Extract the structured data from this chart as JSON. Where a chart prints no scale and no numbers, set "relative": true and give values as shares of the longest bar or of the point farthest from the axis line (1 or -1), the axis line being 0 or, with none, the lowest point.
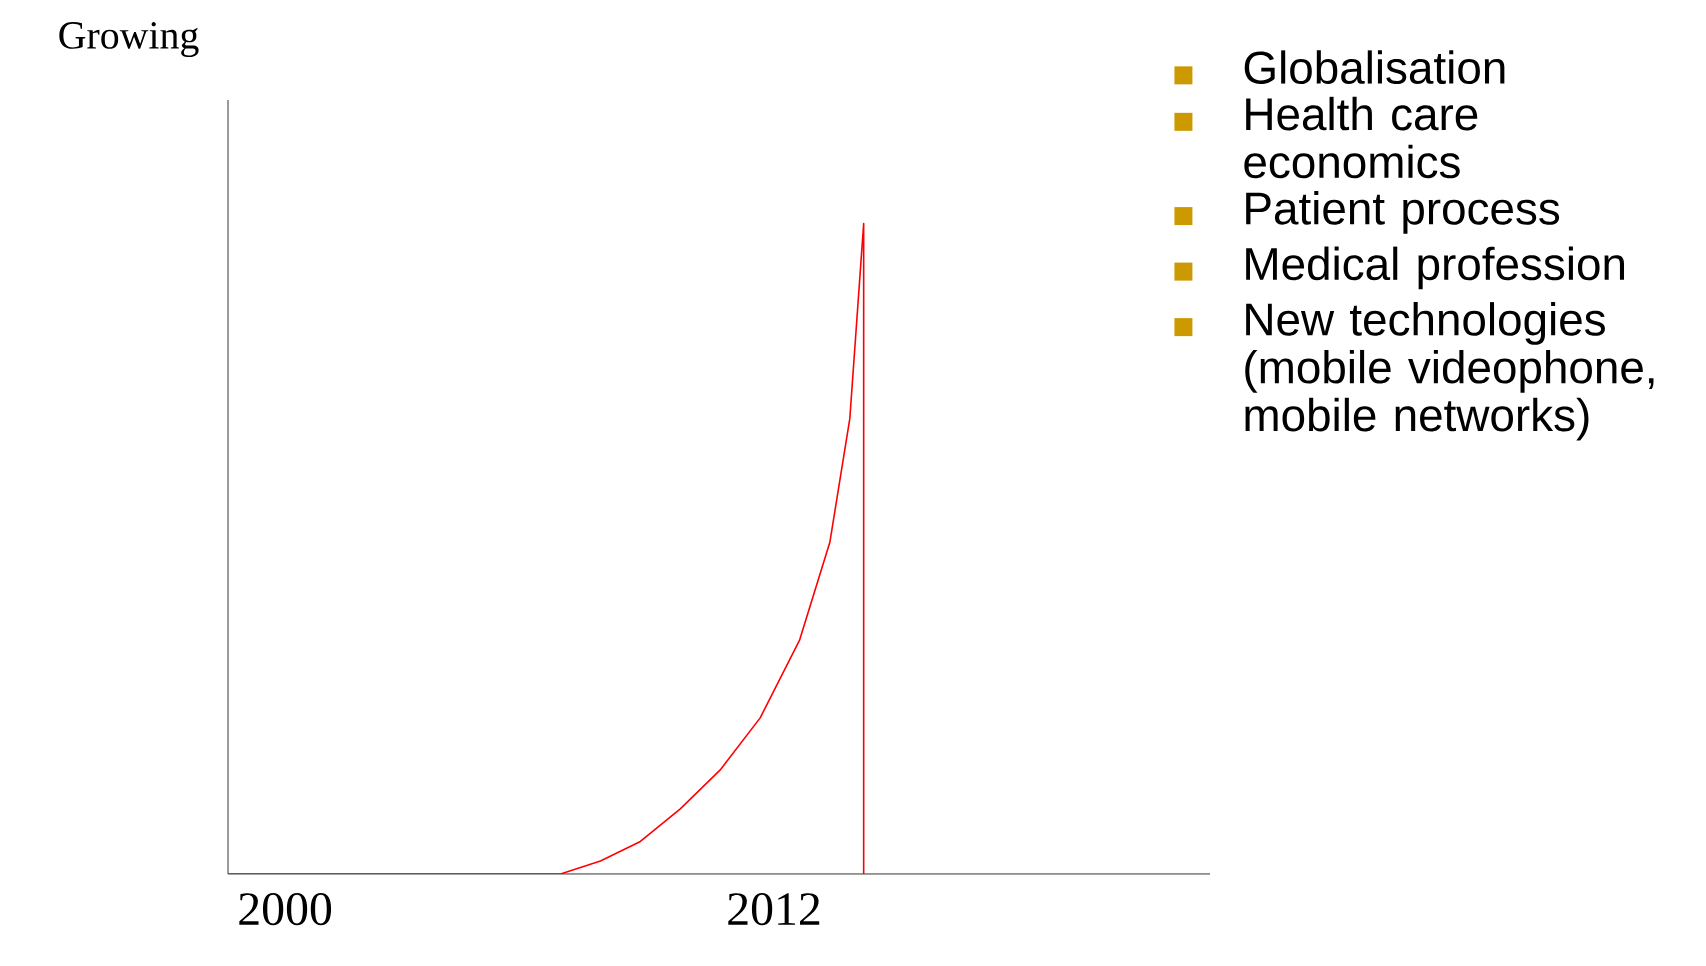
{
  "chart_data": {
    "type": "line",
    "ylabel": "Growing",
    "color": "#ff0000",
    "relative": true,
    "x": [
      1998.63,
      2006.76,
      2007.74,
      2008.72,
      2009.7,
      2010.68,
      2011.66,
      2012.63,
      2013.37,
      2013.86,
      2014.2,
      2014.2
    ],
    "values": [
      0,
      0,
      0.02,
      0.05,
      0.1,
      0.16,
      0.24,
      0.36,
      0.51,
      0.7,
      1,
      0
    ],
    "xlim": [
      1998.6,
      2022.7
    ],
    "xticks": [
      2000,
      2012
    ],
    "annotations": [
      "Globalisation",
      "Health care economics",
      "Patient process",
      "Medical profession",
      "New technologies (mobile videophone, mobile networks)"
    ]
  }
}
